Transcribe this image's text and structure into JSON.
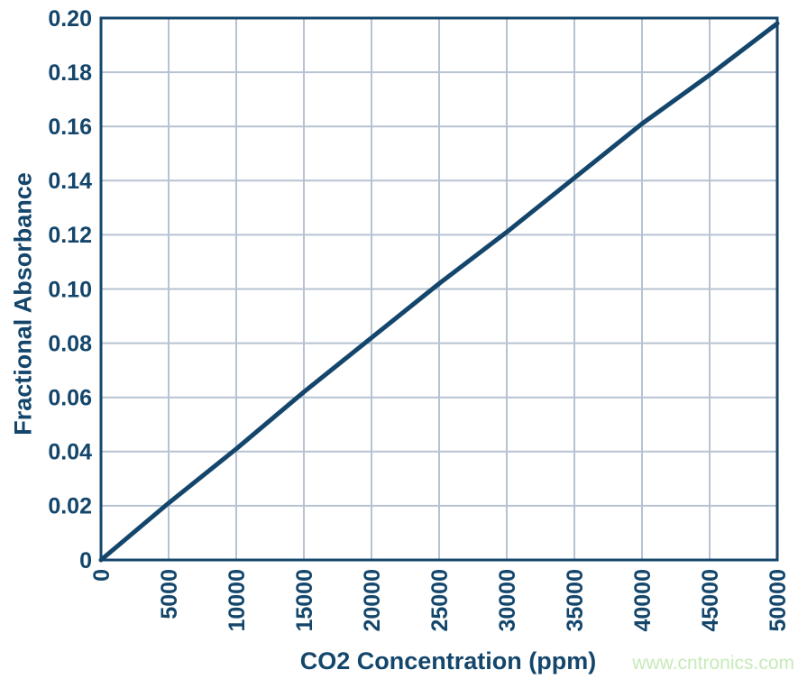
{
  "figure": {
    "background": "#ffffff"
  },
  "chart_data": {
    "type": "line",
    "title": "",
    "xlabel": "CO2 Concentration (ppm)",
    "ylabel": "Fractional Absorbance",
    "x": [
      0,
      5000,
      10000,
      15000,
      20000,
      25000,
      30000,
      35000,
      40000,
      45000,
      50000
    ],
    "series": [
      {
        "name": "Fractional Absorbance",
        "values": [
          0,
          0.021,
          0.041,
          0.062,
          0.082,
          0.102,
          0.121,
          0.141,
          0.161,
          0.179,
          0.198
        ]
      }
    ],
    "xlim": [
      0,
      50000
    ],
    "ylim": [
      0,
      0.2
    ],
    "x_tick_values": [
      0,
      5000,
      10000,
      15000,
      20000,
      25000,
      30000,
      35000,
      40000,
      45000,
      50000
    ],
    "x_tick_labels": [
      "0",
      "5000",
      "10000",
      "15000",
      "20000",
      "25000",
      "30000",
      "35000",
      "40000",
      "45000",
      "50000"
    ],
    "y_tick_values": [
      0,
      0.02,
      0.04,
      0.06,
      0.08,
      0.1,
      0.12,
      0.14,
      0.16,
      0.18,
      0.2
    ],
    "y_tick_labels": [
      "0",
      "0.02",
      "0.04",
      "0.06",
      "0.08",
      "0.10",
      "0.12",
      "0.14",
      "0.16",
      "0.18",
      "0.20"
    ],
    "grid": true,
    "legend": false,
    "colors": {
      "line": "#14466c",
      "axis": "#14466c",
      "grid": "#b7c3d2",
      "text": "#14466c"
    }
  },
  "watermark": {
    "text": "www.cntronics.com",
    "color": "#c6eab8"
  }
}
